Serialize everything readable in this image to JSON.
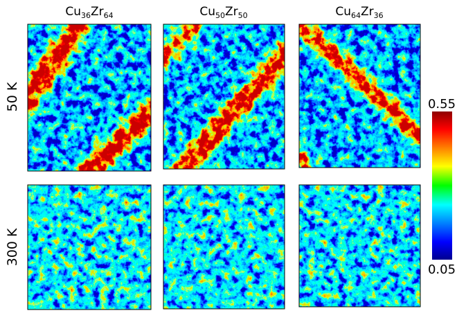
{
  "columns": [
    {
      "element1": "Cu",
      "sub1": "36",
      "element2": "Zr",
      "sub2": "64"
    },
    {
      "element1": "Cu",
      "sub1": "50",
      "element2": "Zr",
      "sub2": "50"
    },
    {
      "element1": "Cu",
      "sub1": "64",
      "element2": "Zr",
      "sub2": "36"
    }
  ],
  "rows": [
    "50 K",
    "300 K"
  ],
  "colorbar": {
    "max_label": "0.55",
    "min_label": "0.05"
  }
}
